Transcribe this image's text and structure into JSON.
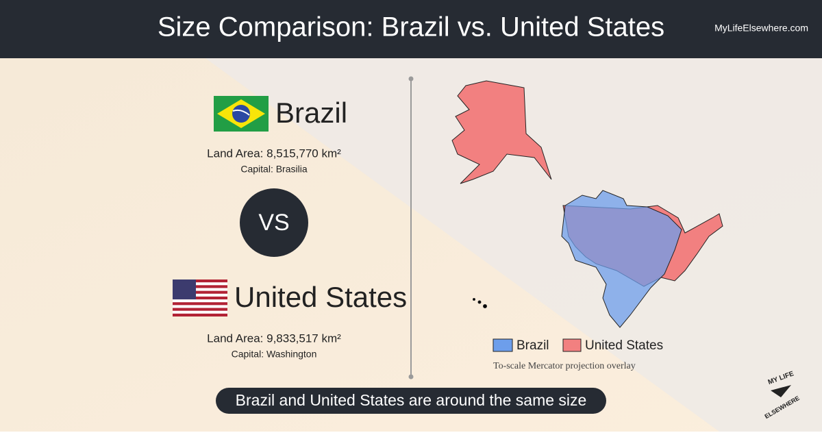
{
  "header": {
    "title": "Size Comparison: Brazil vs. United States",
    "site": "MyLifeElsewhere.com"
  },
  "countries": [
    {
      "name": "Brazil",
      "land_area": "Land Area: 8,515,770 km²",
      "capital": "Capital: Brasilia"
    },
    {
      "name": "United States",
      "land_area": "Land Area: 9,833,517 km²",
      "capital": "Capital: Washington"
    }
  ],
  "vs": "VS",
  "legend": [
    {
      "name": "Brazil",
      "color": "#6d9eeb"
    },
    {
      "name": "United States",
      "color": "#f28080"
    }
  ],
  "map_caption": "To-scale Mercator projection overlay",
  "footer": "Brazil and United States are around the same size",
  "logo": {
    "top": "MY LIFE",
    "bottom": "ELSEWHERE"
  }
}
